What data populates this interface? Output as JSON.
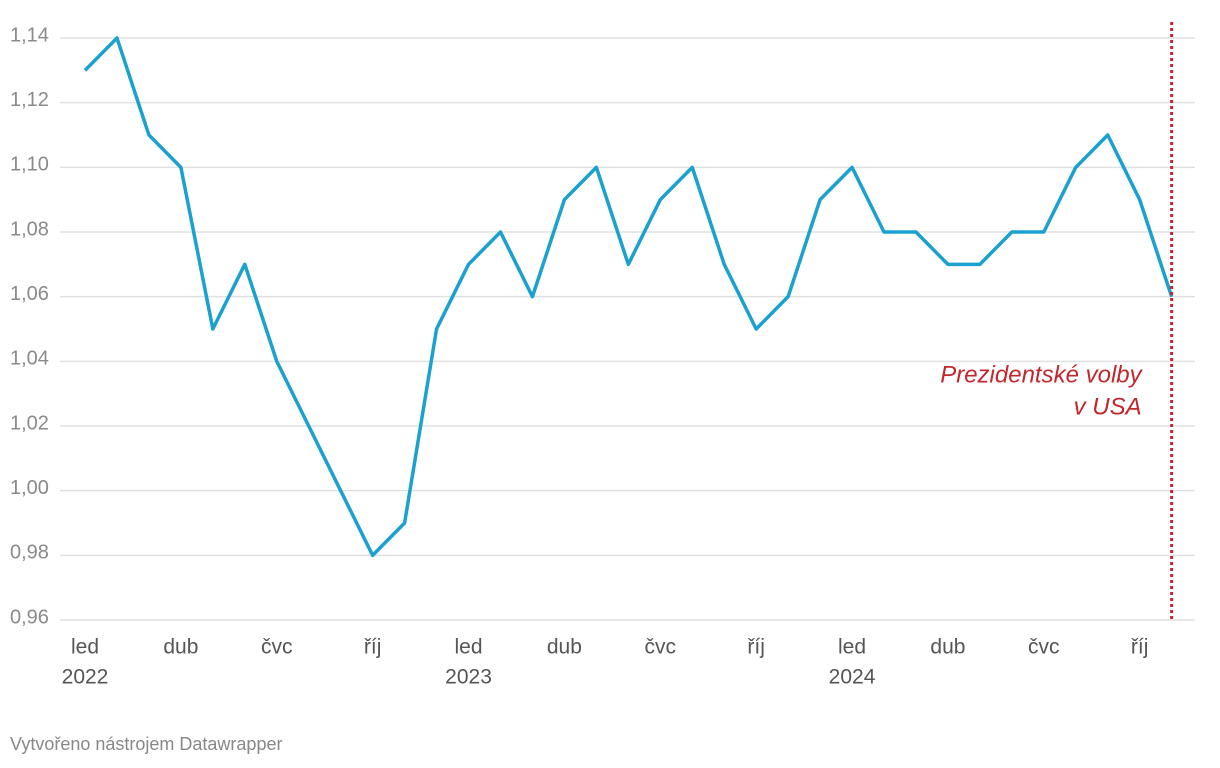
{
  "chart_data": {
    "type": "line",
    "x": [
      "2022-01",
      "2022-02",
      "2022-03",
      "2022-04",
      "2022-05",
      "2022-06",
      "2022-07",
      "2022-08",
      "2022-09",
      "2022-10",
      "2022-11",
      "2022-12",
      "2023-01",
      "2023-02",
      "2023-03",
      "2023-04",
      "2023-05",
      "2023-06",
      "2023-07",
      "2023-08",
      "2023-09",
      "2023-10",
      "2023-11",
      "2023-12",
      "2024-01",
      "2024-02",
      "2024-03",
      "2024-04",
      "2024-05",
      "2024-06",
      "2024-07",
      "2024-08",
      "2024-09",
      "2024-10",
      "2024-11"
    ],
    "series": [
      {
        "color": "#1ba1d0",
        "values": [
          1.13,
          1.14,
          1.11,
          1.1,
          1.05,
          1.07,
          1.04,
          1.02,
          1.0,
          0.98,
          0.99,
          1.05,
          1.07,
          1.08,
          1.06,
          1.09,
          1.1,
          1.07,
          1.09,
          1.1,
          1.07,
          1.05,
          1.06,
          1.09,
          1.1,
          1.08,
          1.08,
          1.07,
          1.07,
          1.08,
          1.08,
          1.1,
          1.11,
          1.09,
          1.06
        ]
      }
    ],
    "ylim": [
      0.96,
      1.14
    ],
    "yticks": [
      {
        "value": 0.96,
        "label": "0,96"
      },
      {
        "value": 0.98,
        "label": "0,98"
      },
      {
        "value": 1.0,
        "label": "1,00"
      },
      {
        "value": 1.02,
        "label": "1,02"
      },
      {
        "value": 1.04,
        "label": "1,04"
      },
      {
        "value": 1.06,
        "label": "1,06"
      },
      {
        "value": 1.08,
        "label": "1,08"
      },
      {
        "value": 1.1,
        "label": "1,10"
      },
      {
        "value": 1.12,
        "label": "1,12"
      },
      {
        "value": 1.14,
        "label": "1,14"
      }
    ],
    "xticks": [
      {
        "value": "2022-01",
        "label": "led",
        "year": "2022"
      },
      {
        "value": "2022-04",
        "label": "dub"
      },
      {
        "value": "2022-07",
        "label": "čvc"
      },
      {
        "value": "2022-10",
        "label": "říj"
      },
      {
        "value": "2023-01",
        "label": "led",
        "year": "2023"
      },
      {
        "value": "2023-04",
        "label": "dub"
      },
      {
        "value": "2023-07",
        "label": "čvc"
      },
      {
        "value": "2023-10",
        "label": "říj"
      },
      {
        "value": "2024-01",
        "label": "led",
        "year": "2024"
      },
      {
        "value": "2024-04",
        "label": "dub"
      },
      {
        "value": "2024-07",
        "label": "čvc"
      },
      {
        "value": "2024-10",
        "label": "říj"
      }
    ],
    "grid": true,
    "annotation": {
      "x": "2024-11",
      "lines": [
        "Prezidentské volby",
        "v USA"
      ],
      "color": "#c1272d"
    },
    "footer": "Vytvořeno nástrojem Datawrapper"
  }
}
